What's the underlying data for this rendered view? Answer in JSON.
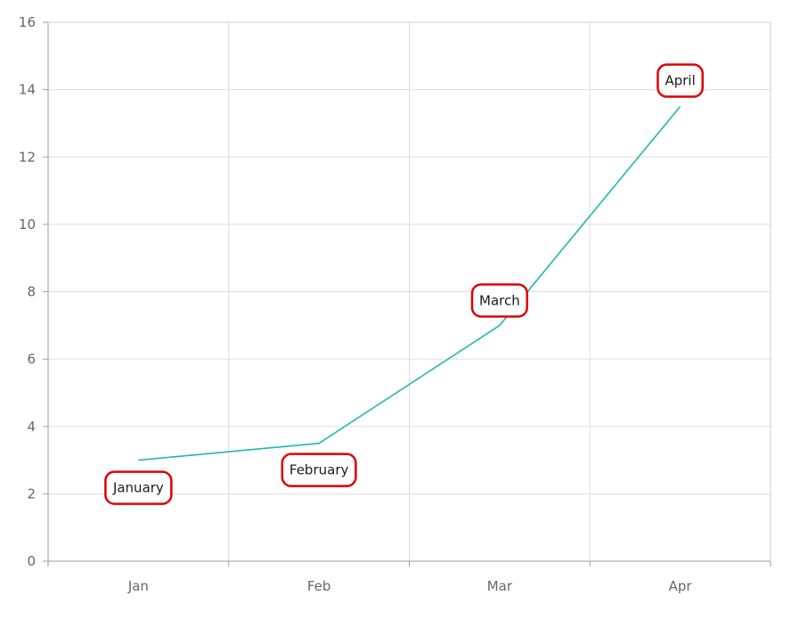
{
  "chart_data": {
    "type": "line",
    "title": "",
    "xlabel": "",
    "ylabel": "",
    "categories": [
      "Jan",
      "Feb",
      "Mar",
      "Apr"
    ],
    "series": [
      {
        "values": [
          3,
          3.5,
          7,
          13.5
        ],
        "data_labels": [
          "January",
          "February",
          "March",
          "April"
        ]
      }
    ],
    "ylim": [
      0,
      16
    ],
    "y_ticks": [
      "0",
      "2",
      "4",
      "6",
      "8",
      "10",
      "12",
      "14",
      "16"
    ],
    "grid": true,
    "legend": "none",
    "colors": {
      "line": "#1fb9ad",
      "label_border": "#e00000",
      "grid": "#dddddd",
      "axis": "#9e9e9e",
      "tick_text": "#666666"
    }
  }
}
